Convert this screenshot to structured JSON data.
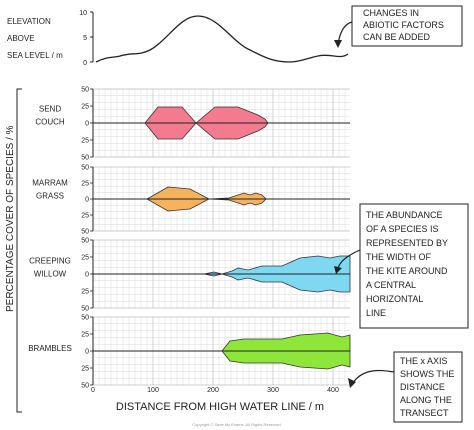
{
  "elevation": {
    "label_lines": [
      "ELEVATION",
      "ABOVE",
      "SEA LEVEL / m"
    ],
    "ticks": [
      "10",
      "5",
      "0"
    ]
  },
  "y_axis_title": "PERCENTAGE COVER OF SPECIES / %",
  "x_axis_title": "DISTANCE FROM HIGH WATER LINE / m",
  "x_ticks": [
    "0",
    "100",
    "200",
    "300",
    "400"
  ],
  "cover_ticks": [
    "50",
    "25",
    "0",
    "25",
    "50"
  ],
  "species": [
    {
      "name_lines": [
        "SEND",
        "COUCH"
      ],
      "color": "#f47a8f"
    },
    {
      "name_lines": [
        "MARRAM",
        "GRASS"
      ],
      "color": "#f7b25e"
    },
    {
      "name_lines": [
        "CREEPING",
        "WILLOW"
      ],
      "color": "#7fd8f2"
    },
    {
      "name_lines": [
        "BRAMBLES"
      ],
      "color": "#8ee63a"
    }
  ],
  "notes": [
    {
      "lines": [
        "CHANGES IN",
        "ABIOTIC FACTORS",
        "CAN BE ADDED"
      ]
    },
    {
      "lines": [
        "THE ABUNDANCE",
        "OF A SPECIES IS",
        "REPRESENTED BY",
        "THE WIDTH OF",
        "THE KITE AROUND",
        "A CENTRAL",
        "HORIZONTAL",
        "LINE"
      ]
    },
    {
      "lines": [
        "THE x AXIS",
        "SHOWS THE",
        "DISTANCE",
        "ALONG THE",
        "TRANSECT"
      ]
    }
  ],
  "footer": "Copyright © Save My Exams. All Rights Reserved."
}
